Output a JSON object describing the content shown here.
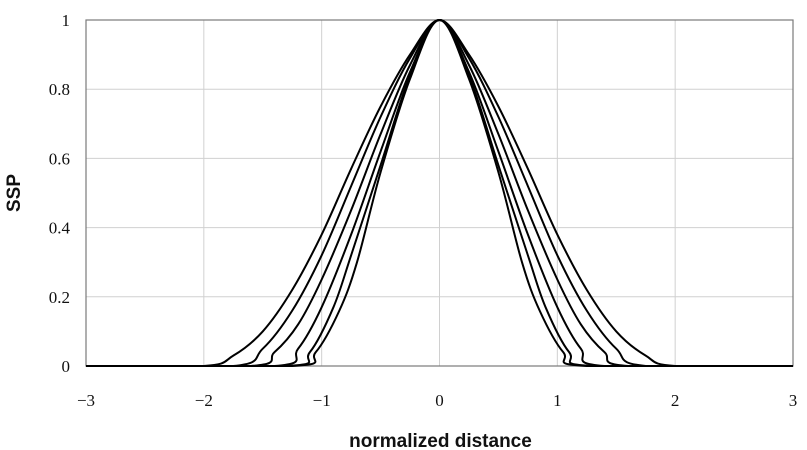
{
  "chart_data": {
    "type": "line",
    "title": "",
    "xlabel": "normalized distance",
    "ylabel": "SSP",
    "xlim": [
      -3,
      3
    ],
    "ylim": [
      0,
      1
    ],
    "x_ticks": [
      "−3",
      "−2",
      "−1",
      "0",
      "1",
      "2",
      "3"
    ],
    "y_ticks": [
      "0",
      "0.2",
      "0.4",
      "0.6",
      "0.8",
      "1"
    ],
    "grid": true,
    "legend": "none",
    "line_color": "#000000",
    "series": [
      {
        "values": [
          [
            -3,
            0
          ],
          [
            -2,
            0
          ],
          [
            -1.75,
            0.03
          ],
          [
            -1.5,
            0.1
          ],
          [
            -1.25,
            0.22
          ],
          [
            -1,
            0.38
          ],
          [
            -0.75,
            0.57
          ],
          [
            -0.5,
            0.75
          ],
          [
            -0.25,
            0.9
          ],
          [
            0,
            1
          ],
          [
            0.25,
            0.9
          ],
          [
            0.5,
            0.75
          ],
          [
            0.75,
            0.57
          ],
          [
            1,
            0.38
          ],
          [
            1.25,
            0.22
          ],
          [
            1.5,
            0.1
          ],
          [
            1.75,
            0.03
          ],
          [
            2,
            0
          ],
          [
            3,
            0
          ]
        ]
      },
      {
        "values": [
          [
            -3,
            0
          ],
          [
            -1.75,
            0
          ],
          [
            -1.5,
            0.05
          ],
          [
            -1.25,
            0.16
          ],
          [
            -1,
            0.32
          ],
          [
            -0.75,
            0.52
          ],
          [
            -0.5,
            0.72
          ],
          [
            -0.25,
            0.89
          ],
          [
            0,
            1
          ],
          [
            0.25,
            0.89
          ],
          [
            0.5,
            0.72
          ],
          [
            0.75,
            0.52
          ],
          [
            1,
            0.32
          ],
          [
            1.25,
            0.16
          ],
          [
            1.5,
            0.05
          ],
          [
            1.75,
            0
          ],
          [
            3,
            0
          ]
        ]
      },
      {
        "values": [
          [
            -3,
            0
          ],
          [
            -1.6,
            0
          ],
          [
            -1.4,
            0.04
          ],
          [
            -1.2,
            0.12
          ],
          [
            -1,
            0.25
          ],
          [
            -0.75,
            0.45
          ],
          [
            -0.5,
            0.67
          ],
          [
            -0.25,
            0.87
          ],
          [
            0,
            1
          ],
          [
            0.25,
            0.87
          ],
          [
            0.5,
            0.67
          ],
          [
            0.75,
            0.45
          ],
          [
            1,
            0.25
          ],
          [
            1.2,
            0.12
          ],
          [
            1.4,
            0.04
          ],
          [
            1.6,
            0
          ],
          [
            3,
            0
          ]
        ]
      },
      {
        "values": [
          [
            -3,
            0
          ],
          [
            -1.4,
            0
          ],
          [
            -1.2,
            0.05
          ],
          [
            -1,
            0.17
          ],
          [
            -0.75,
            0.38
          ],
          [
            -0.5,
            0.62
          ],
          [
            -0.25,
            0.85
          ],
          [
            0,
            1
          ],
          [
            0.25,
            0.85
          ],
          [
            0.5,
            0.62
          ],
          [
            0.75,
            0.38
          ],
          [
            1,
            0.17
          ],
          [
            1.2,
            0.05
          ],
          [
            1.4,
            0
          ],
          [
            3,
            0
          ]
        ]
      },
      {
        "values": [
          [
            -3,
            0
          ],
          [
            -1.3,
            0
          ],
          [
            -1.1,
            0.04
          ],
          [
            -0.9,
            0.17
          ],
          [
            -0.75,
            0.32
          ],
          [
            -0.5,
            0.58
          ],
          [
            -0.25,
            0.84
          ],
          [
            0,
            1
          ],
          [
            0.25,
            0.84
          ],
          [
            0.5,
            0.58
          ],
          [
            0.75,
            0.32
          ],
          [
            0.9,
            0.17
          ],
          [
            1.1,
            0.04
          ],
          [
            1.3,
            0
          ],
          [
            3,
            0
          ]
        ]
      },
      {
        "values": [
          [
            -3,
            0
          ],
          [
            -1.25,
            0
          ],
          [
            -1.05,
            0.04
          ],
          [
            -0.85,
            0.16
          ],
          [
            -0.7,
            0.3
          ],
          [
            -0.5,
            0.56
          ],
          [
            -0.25,
            0.83
          ],
          [
            0,
            1
          ],
          [
            0.25,
            0.83
          ],
          [
            0.5,
            0.56
          ],
          [
            0.7,
            0.3
          ],
          [
            0.85,
            0.16
          ],
          [
            1.05,
            0.04
          ],
          [
            1.25,
            0
          ],
          [
            3,
            0
          ]
        ]
      }
    ]
  }
}
